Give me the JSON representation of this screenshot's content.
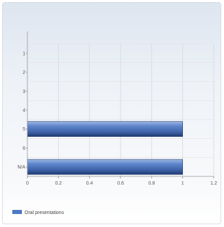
{
  "chart_data": {
    "type": "bar",
    "orientation": "horizontal",
    "categories": [
      "1",
      "2",
      "3",
      "4",
      "5",
      "6",
      "N/A"
    ],
    "series": [
      {
        "name": "Oral presentations",
        "values": [
          0,
          0,
          0,
          0,
          1,
          0,
          1
        ],
        "color": "#4f79c2"
      }
    ],
    "xlim": [
      0,
      1.2
    ],
    "xticks": [
      "0",
      "0.2",
      "0.4",
      "0.6",
      "0.8",
      "1",
      "1.2"
    ],
    "grid": true,
    "legend": "bottom-left"
  }
}
